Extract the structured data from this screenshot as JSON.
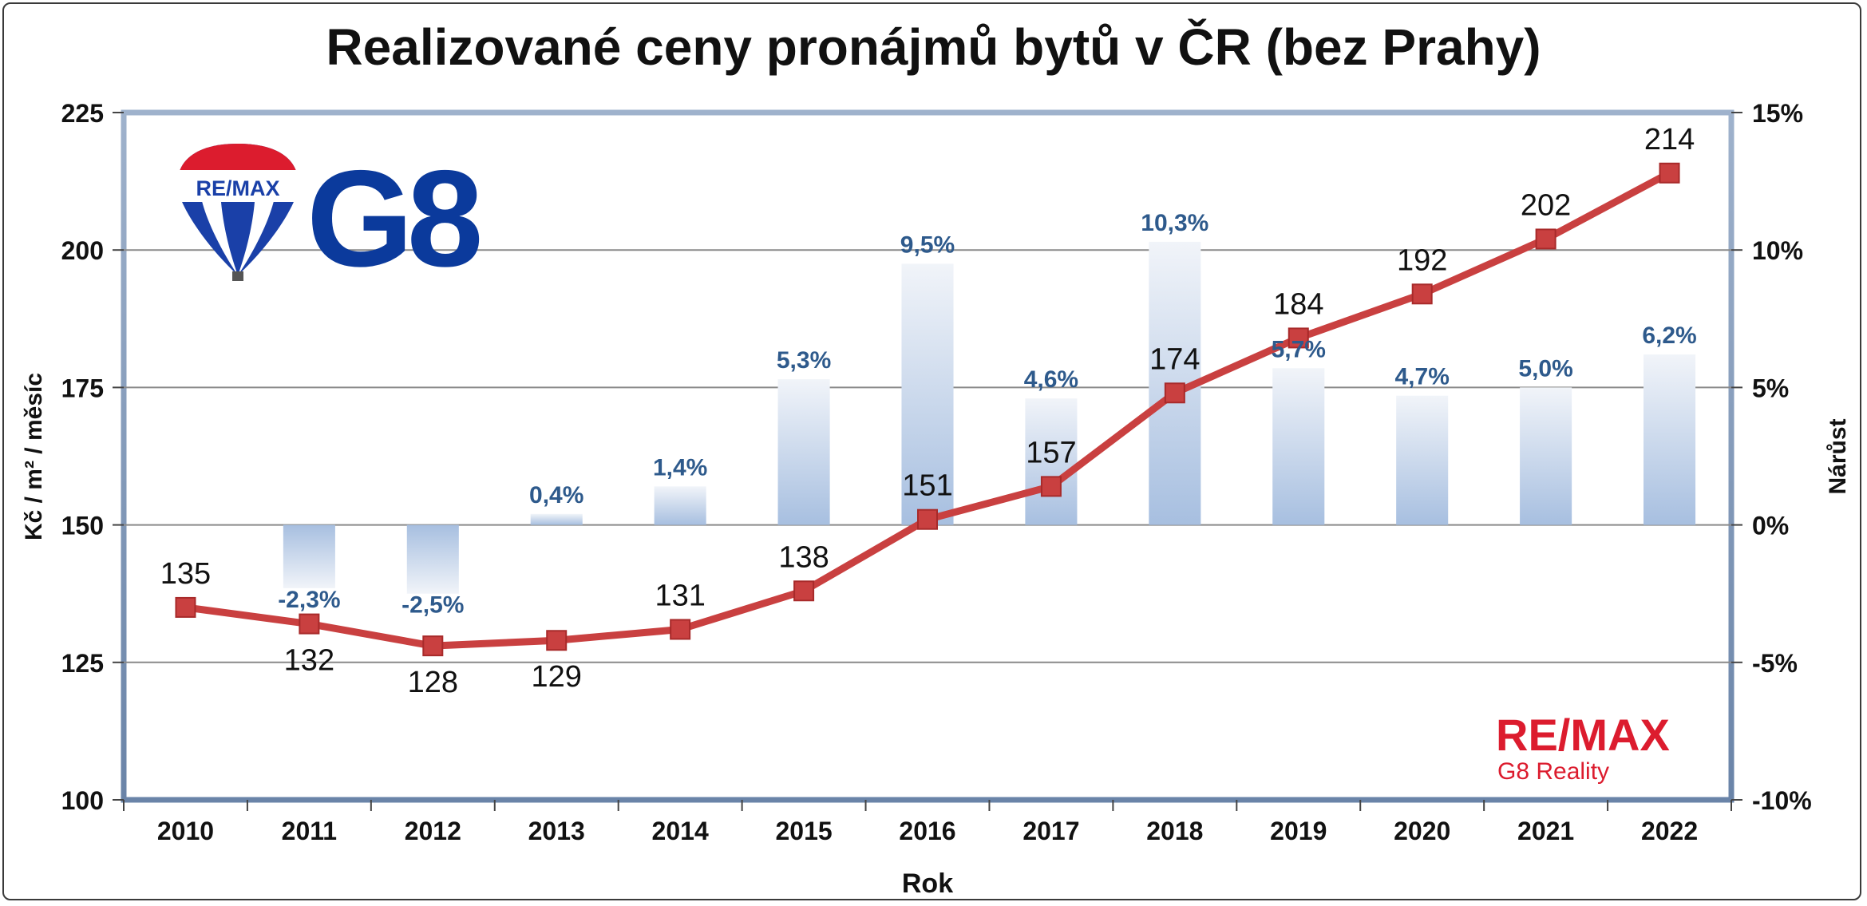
{
  "chart_data": {
    "type": "bar+line",
    "title": "Realizované ceny pronájmů bytů v ČR (bez Prahy)",
    "xlabel": "Rok",
    "ylabel_left": "Kč / m² / měsíc",
    "ylabel_right": "Nárůst",
    "categories": [
      "2010",
      "2011",
      "2012",
      "2013",
      "2014",
      "2015",
      "2016",
      "2017",
      "2018",
      "2019",
      "2020",
      "2021",
      "2022"
    ],
    "ylim_left": [
      100,
      225
    ],
    "yticks_left": [
      "100",
      "125",
      "150",
      "175",
      "200",
      "225"
    ],
    "ylim_right": [
      -10,
      15
    ],
    "yticks_right": [
      "-10%",
      "-5%",
      "0%",
      "5%",
      "10%",
      "15%"
    ],
    "grid": true,
    "series": [
      {
        "type": "bar",
        "axis": "right",
        "values": [
          null,
          -2.3,
          -2.5,
          0.4,
          1.4,
          5.3,
          9.5,
          4.6,
          10.3,
          5.7,
          4.7,
          5.0,
          6.2
        ],
        "labels": [
          "",
          "-2,3%",
          "-2,5%",
          "0,4%",
          "1,4%",
          "5,3%",
          "9,5%",
          "4,6%",
          "10,3%",
          "5,7%",
          "4,7%",
          "5,0%",
          "6,2%"
        ],
        "color": "#a8c0e0",
        "label_color": "#2e5a8c"
      },
      {
        "type": "line",
        "axis": "left",
        "values": [
          135,
          132,
          128,
          129,
          131,
          138,
          151,
          157,
          174,
          184,
          192,
          202,
          214
        ],
        "labels": [
          "135",
          "132",
          "128",
          "129",
          "131",
          "138",
          "151",
          "157",
          "174",
          "184",
          "192",
          "202",
          "214"
        ],
        "color": "#c94040"
      }
    ],
    "logos": {
      "top_left_text": "G8",
      "balloon_text": "RE/MAX",
      "bottom_right_brand": "RE/MAX",
      "bottom_right_sub": "G8 Reality",
      "brand_red": "#dc1c2e",
      "brand_blue": "#0b3a9c"
    }
  }
}
